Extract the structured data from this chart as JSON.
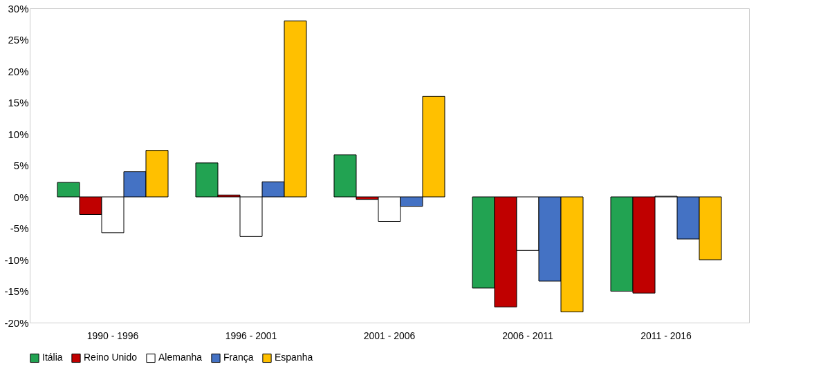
{
  "chart_data": {
    "type": "bar",
    "categories": [
      "1990 - 1996",
      "1996 - 2001",
      "2001 - 2006",
      "2006 - 2011",
      "2011 - 2016"
    ],
    "series": [
      {
        "name": "Itália",
        "color": "#22a352",
        "values": [
          2.3,
          5.4,
          6.7,
          -14.5,
          -15.0
        ]
      },
      {
        "name": "Reino Unido",
        "color": "#c00000",
        "values": [
          -2.8,
          0.3,
          -0.4,
          -17.5,
          -15.3
        ]
      },
      {
        "name": "Alemanha",
        "color": "#ffffff",
        "values": [
          -5.7,
          -6.3,
          -3.9,
          -8.5,
          0.1
        ]
      },
      {
        "name": "França",
        "color": "#4472c4",
        "values": [
          4.0,
          2.4,
          -1.5,
          -13.4,
          -6.7
        ]
      },
      {
        "name": "Espanha",
        "color": "#ffc000",
        "values": [
          7.4,
          28.0,
          16.0,
          -18.3,
          -10.0
        ]
      }
    ],
    "ylim": [
      -20,
      30
    ],
    "yticks": [
      {
        "value": -20,
        "label": "-20%"
      },
      {
        "value": -15,
        "label": "-15%"
      },
      {
        "value": -10,
        "label": "-10%"
      },
      {
        "value": -5,
        "label": "-5%"
      },
      {
        "value": 0,
        "label": "0%"
      },
      {
        "value": 5,
        "label": "5%"
      },
      {
        "value": 10,
        "label": "10%"
      },
      {
        "value": 15,
        "label": "15%"
      },
      {
        "value": 20,
        "label": "20%"
      },
      {
        "value": 25,
        "label": "25%"
      },
      {
        "value": 30,
        "label": "30%"
      }
    ],
    "grid": false,
    "legend": "bottom"
  }
}
